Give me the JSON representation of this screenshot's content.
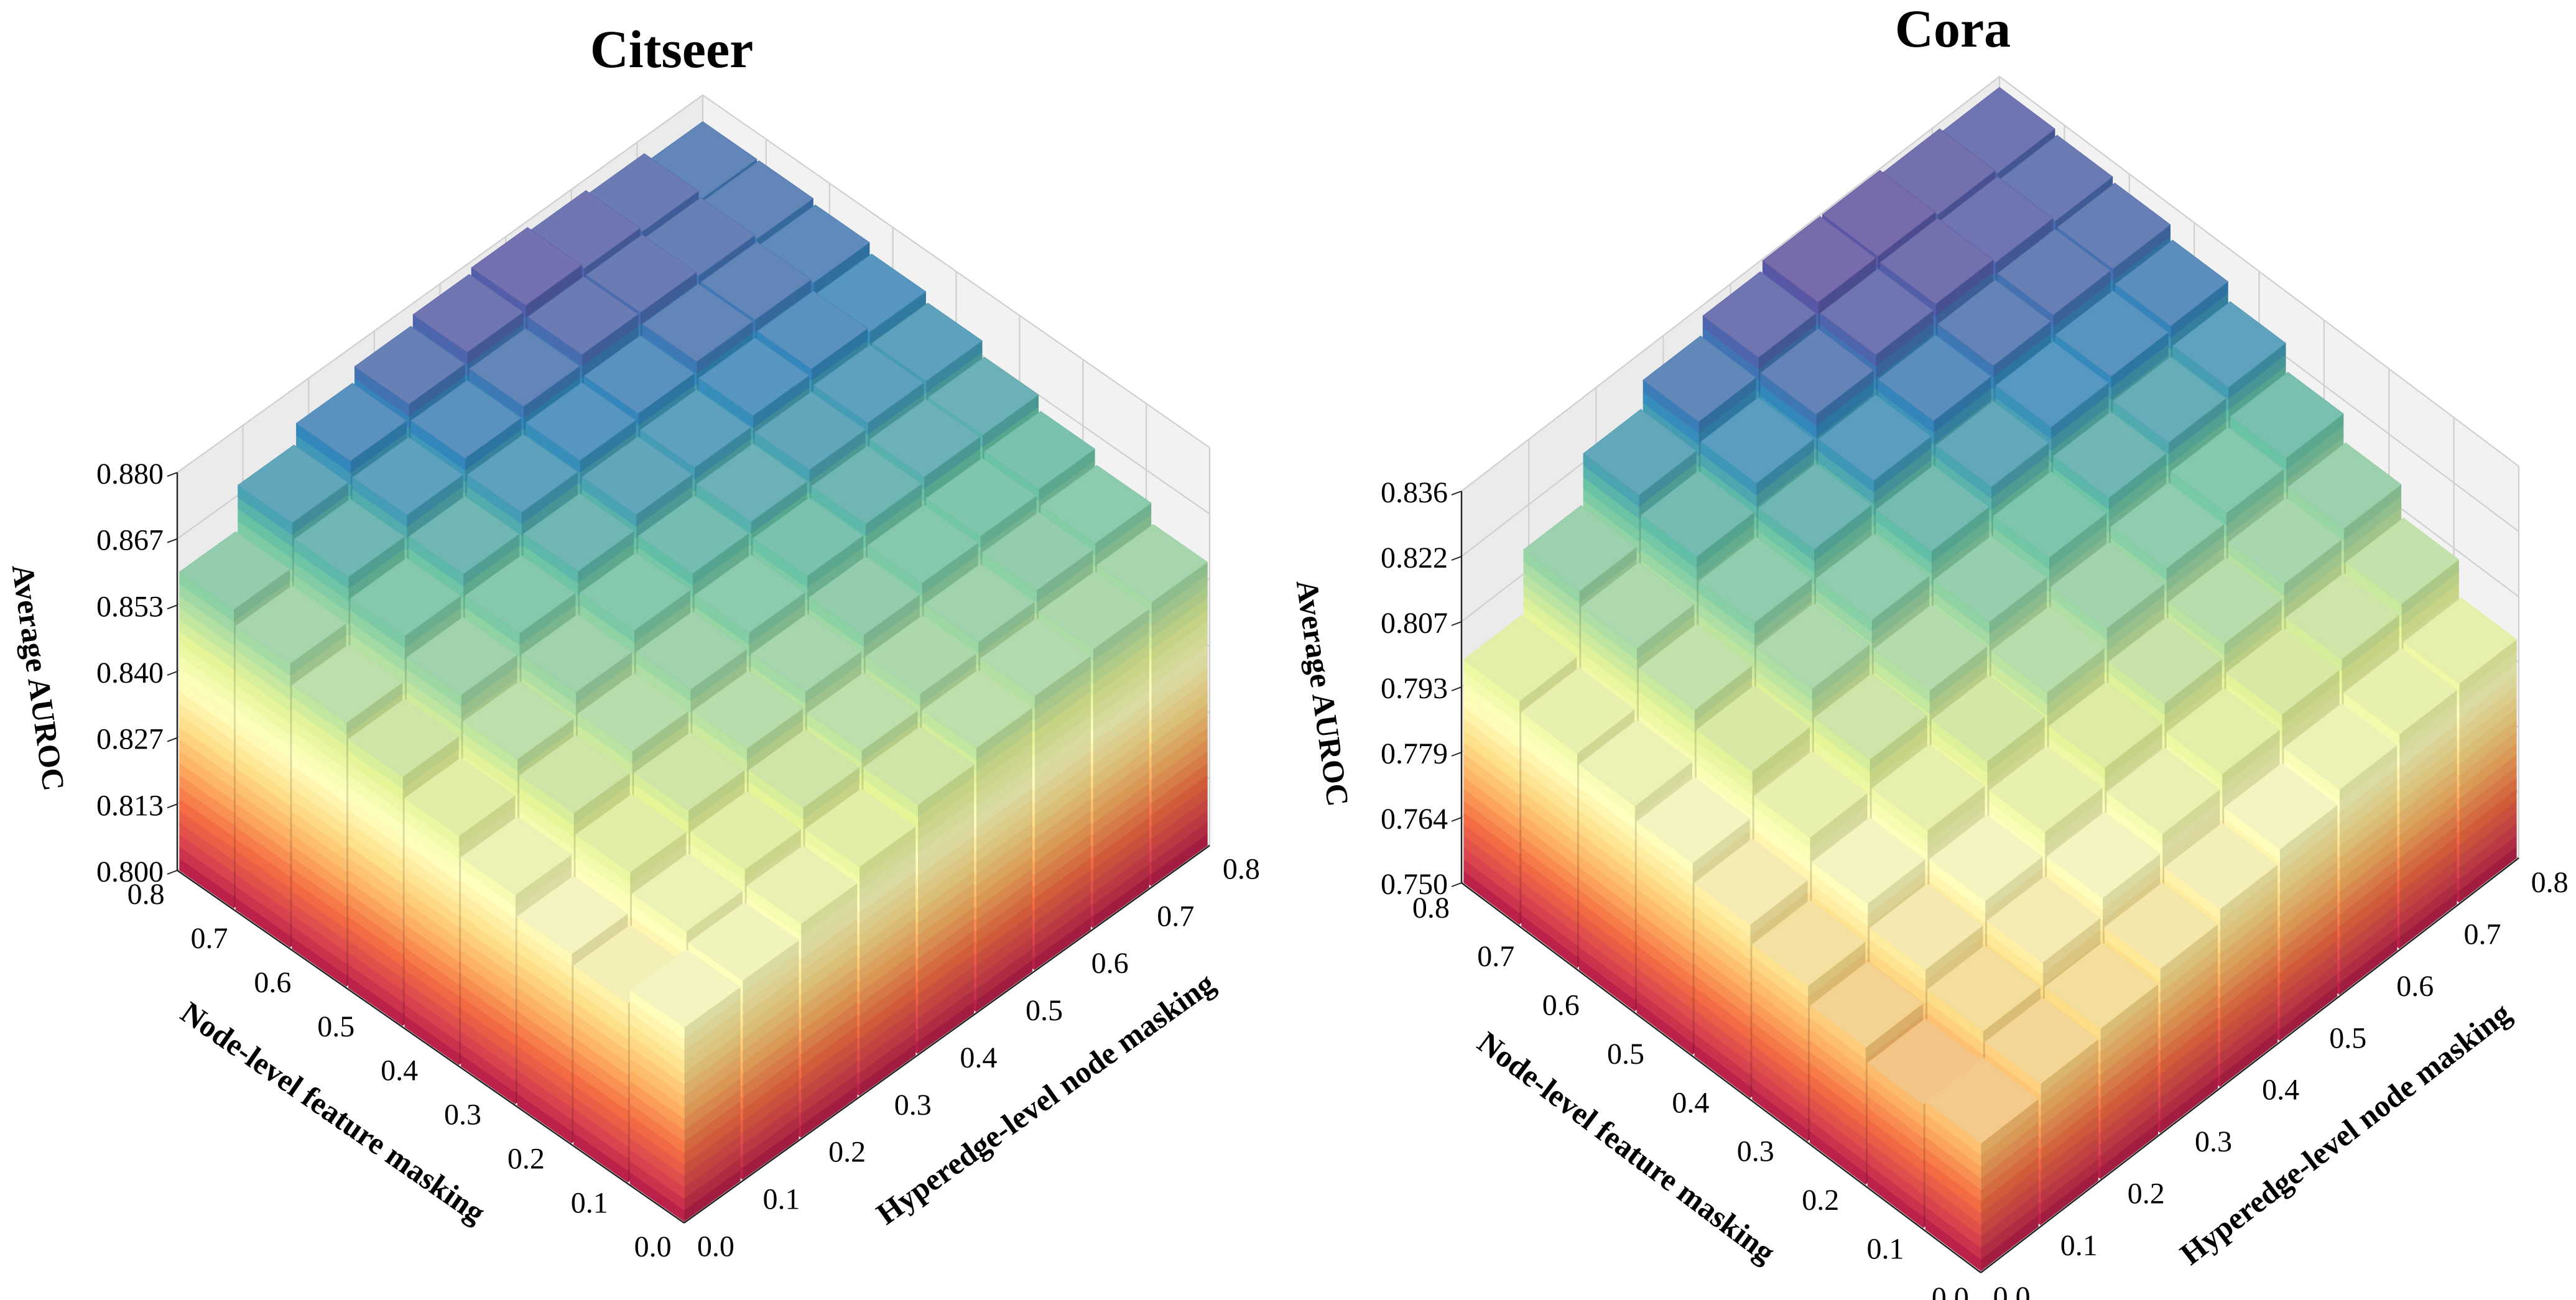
{
  "chart_data": [
    {
      "type": "bar3d",
      "title": "Citseer",
      "xlabel": "Hyperedge-level node masking",
      "ylabel": "Node-level feature masking",
      "zlabel": "Average AUROC",
      "x_ticks": [
        "0.0",
        "0.1",
        "0.2",
        "0.3",
        "0.4",
        "0.5",
        "0.6",
        "0.7",
        "0.8"
      ],
      "y_ticks": [
        "0.0",
        "0.1",
        "0.2",
        "0.3",
        "0.4",
        "0.5",
        "0.6",
        "0.7",
        "0.8"
      ],
      "z_ticks": [
        "0.800",
        "0.813",
        "0.827",
        "0.840",
        "0.853",
        "0.867",
        "0.880"
      ],
      "zlim": [
        0.8,
        0.88
      ],
      "note": "values[i][j]: i = Hyperedge-level node masking index, j = Node-level feature masking index (estimated)",
      "values": [
        [
          0.839,
          0.836,
          0.838,
          0.842,
          0.846,
          0.85,
          0.853,
          0.857,
          0.86
        ],
        [
          0.84,
          0.842,
          0.846,
          0.85,
          0.853,
          0.858,
          0.862,
          0.866,
          0.869
        ],
        [
          0.843,
          0.846,
          0.85,
          0.854,
          0.858,
          0.862,
          0.866,
          0.87,
          0.873
        ],
        [
          0.846,
          0.85,
          0.854,
          0.858,
          0.862,
          0.866,
          0.87,
          0.873,
          0.876
        ],
        [
          0.85,
          0.853,
          0.857,
          0.861,
          0.865,
          0.869,
          0.872,
          0.875,
          0.878
        ],
        [
          0.853,
          0.856,
          0.86,
          0.864,
          0.867,
          0.87,
          0.873,
          0.877,
          0.879
        ],
        [
          0.855,
          0.858,
          0.862,
          0.866,
          0.869,
          0.872,
          0.875,
          0.877,
          0.878
        ],
        [
          0.856,
          0.86,
          0.863,
          0.867,
          0.87,
          0.873,
          0.875,
          0.876,
          0.877
        ],
        [
          0.857,
          0.861,
          0.864,
          0.867,
          0.87,
          0.872,
          0.874,
          0.875,
          0.875
        ]
      ]
    },
    {
      "type": "bar3d",
      "title": "Cora",
      "xlabel": "Hyperedge-level node masking",
      "ylabel": "Node-level feature masking",
      "zlabel": "Average AUROC",
      "x_ticks": [
        "0.0",
        "0.1",
        "0.2",
        "0.3",
        "0.4",
        "0.5",
        "0.6",
        "0.7",
        "0.8"
      ],
      "y_ticks": [
        "0.0",
        "0.1",
        "0.2",
        "0.3",
        "0.4",
        "0.5",
        "0.6",
        "0.7",
        "0.8"
      ],
      "z_ticks": [
        "0.750",
        "0.764",
        "0.779",
        "0.793",
        "0.807",
        "0.822",
        "0.836"
      ],
      "zlim": [
        0.75,
        0.836
      ],
      "note": "values[i][j]: i = Hyperedge-level node masking index, j = Node-level feature masking index (estimated)",
      "values": [
        [
          0.778,
          0.777,
          0.78,
          0.784,
          0.788,
          0.792,
          0.795,
          0.797,
          0.799
        ],
        [
          0.781,
          0.783,
          0.787,
          0.792,
          0.797,
          0.802,
          0.806,
          0.81,
          0.813
        ],
        [
          0.783,
          0.788,
          0.792,
          0.798,
          0.804,
          0.81,
          0.815,
          0.82,
          0.824
        ],
        [
          0.786,
          0.792,
          0.797,
          0.803,
          0.809,
          0.815,
          0.821,
          0.826,
          0.83
        ],
        [
          0.789,
          0.796,
          0.801,
          0.808,
          0.814,
          0.82,
          0.826,
          0.831,
          0.834
        ],
        [
          0.792,
          0.799,
          0.805,
          0.812,
          0.818,
          0.824,
          0.829,
          0.834,
          0.836
        ],
        [
          0.795,
          0.802,
          0.808,
          0.815,
          0.821,
          0.827,
          0.831,
          0.835,
          0.836
        ],
        [
          0.797,
          0.804,
          0.811,
          0.817,
          0.823,
          0.828,
          0.832,
          0.834,
          0.835
        ],
        [
          0.798,
          0.806,
          0.813,
          0.819,
          0.825,
          0.829,
          0.832,
          0.833,
          0.834
        ]
      ]
    }
  ]
}
